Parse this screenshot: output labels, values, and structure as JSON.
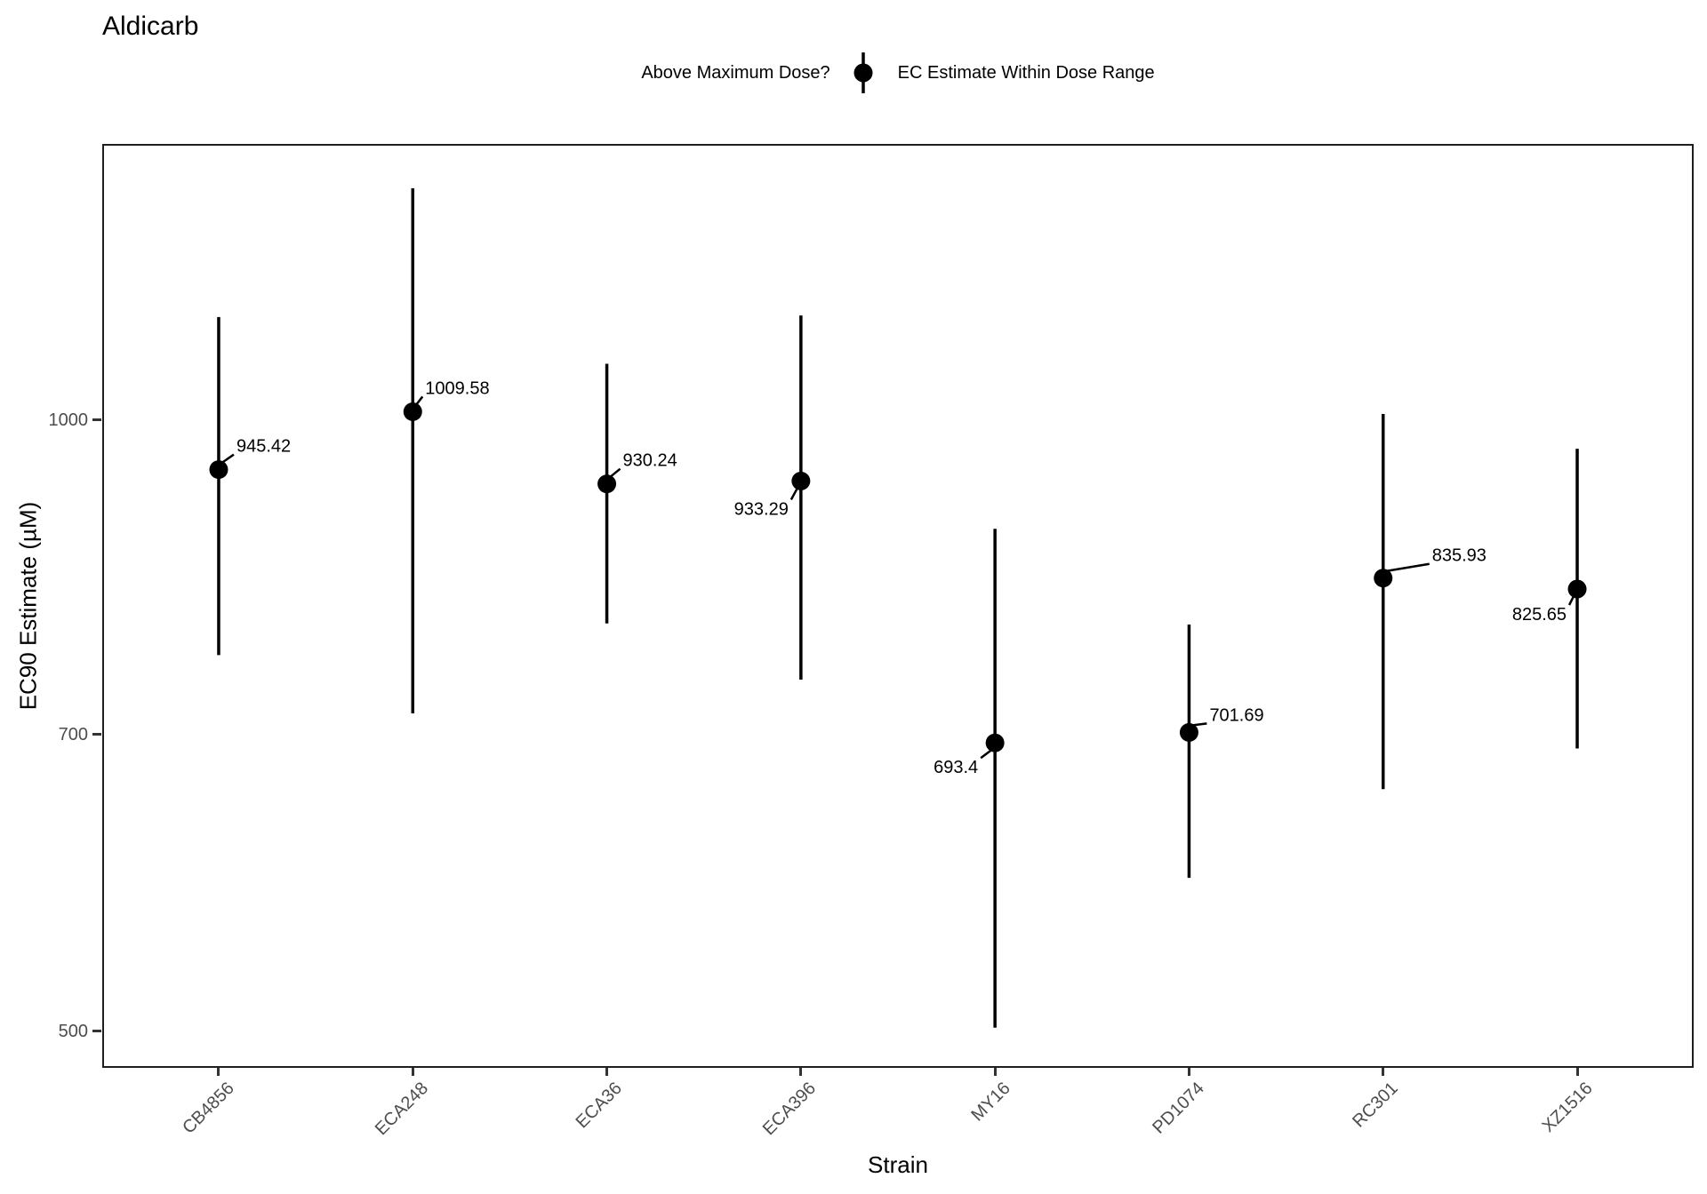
{
  "title": "Aldicarb",
  "legend": {
    "title": "Above Maximum Dose?",
    "entry": "EC Estimate Within Dose Range",
    "symbol": "point-with-vertical-interval"
  },
  "axes": {
    "x_title": "Strain",
    "y_title": "EC90 Estimate (µM)"
  },
  "colors": {
    "point": "#000000",
    "interval_line": "#000000",
    "axis_text": "#4d4d4d",
    "panel_border": "#1f1f1f",
    "background": "#ffffff"
  },
  "chart_data": {
    "type": "scatter",
    "title": "Aldicarb",
    "xlabel": "Strain",
    "ylabel": "EC90 Estimate (µM)",
    "yscale": "log10",
    "ylim": [
      479.6,
      1368
    ],
    "yticks": [
      1000,
      700,
      500
    ],
    "grid": false,
    "legend_position": "top-center",
    "categories": [
      "CB4856",
      "ECA248",
      "ECA36",
      "ECA396",
      "MY16",
      "PD1074",
      "RC301",
      "XZ1516"
    ],
    "series": [
      {
        "name": "EC Estimate Within Dose Range",
        "points": [
          {
            "strain": "CB4856",
            "value": 945.42,
            "label": "945.42",
            "ci_low": 766,
            "ci_high": 1124,
            "label_dx": 20,
            "label_dy": -27,
            "anchor": "start"
          },
          {
            "strain": "ECA248",
            "value": 1009.58,
            "label": "1009.58",
            "ci_low": 717,
            "ci_high": 1301,
            "label_dx": 14,
            "label_dy": -27,
            "anchor": "start"
          },
          {
            "strain": "ECA36",
            "value": 930.24,
            "label": "930.24",
            "ci_low": 794,
            "ci_high": 1066,
            "label_dx": 18,
            "label_dy": -27,
            "anchor": "start"
          },
          {
            "strain": "ECA396",
            "value": 933.29,
            "label": "933.29",
            "ci_low": 745,
            "ci_high": 1126,
            "label_dx": -14,
            "label_dy": 31,
            "anchor": "end"
          },
          {
            "strain": "MY16",
            "value": 693.4,
            "label": "693.4",
            "ci_low": 502,
            "ci_high": 884,
            "label_dx": -19,
            "label_dy": 27,
            "anchor": "end"
          },
          {
            "strain": "PD1074",
            "value": 701.69,
            "label": "701.69",
            "ci_low": 595,
            "ci_high": 793,
            "label_dx": 23,
            "label_dy": -20,
            "anchor": "start"
          },
          {
            "strain": "RC301",
            "value": 835.93,
            "label": "835.93",
            "ci_low": 658,
            "ci_high": 1007,
            "label_dx": 55,
            "label_dy": -26,
            "anchor": "start"
          },
          {
            "strain": "XZ1516",
            "value": 825.65,
            "label": "825.65",
            "ci_low": 689,
            "ci_high": 968,
            "label_dx": -12,
            "label_dy": 28,
            "anchor": "end"
          }
        ]
      }
    ]
  }
}
